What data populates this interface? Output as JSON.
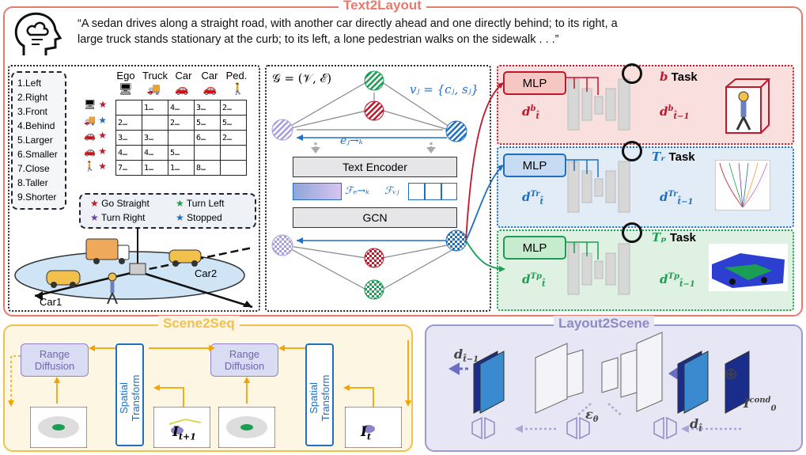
{
  "text2layout": {
    "title": "Text2Layout",
    "quote_line1": "“A sedan drives along a straight road, with another car directly ahead and one directly behind; to its right, a",
    "quote_line2": "large truck stands stationary at the curb; to its left, a lone pedestrian walks on the sidewalk . . .”",
    "relations": [
      "1.Left",
      "2.Right",
      "3.Front",
      "4.Behind",
      "5.Larger",
      "6.Smaller",
      "7.Close",
      "8.Taller",
      "9.Shorter"
    ],
    "table_headers": [
      "Ego",
      "Truck",
      "Car",
      "Car",
      "Ped."
    ],
    "table_rows": [
      [
        "",
        "1…",
        "4…",
        "3…",
        "2…"
      ],
      [
        "2…",
        "",
        "2…",
        "5…",
        "5…"
      ],
      [
        "3…",
        "3…",
        "",
        "6…",
        "2…"
      ],
      [
        "4…",
        "4…",
        "5…",
        "",
        ""
      ],
      [
        "7…",
        "1…",
        "1…",
        "8…",
        ""
      ]
    ],
    "legend": [
      {
        "label": "Go Straight",
        "color": "#c0172b"
      },
      {
        "label": "Turn Left",
        "color": "#1b9e53"
      },
      {
        "label": "Turn Right",
        "color": "#6b3fa0"
      },
      {
        "label": "Stopped",
        "color": "#1f6fc1"
      }
    ],
    "scene_labels": {
      "car1": "Car1",
      "car2": "Car2"
    },
    "graph_eq": "𝒢 = (𝒱, ℰ)",
    "node_eq": "vⱼ = {cⱼ, sⱼ}",
    "edge_label": "eⱼ→ₖ",
    "text_encoder": "Text Encoder",
    "feat_e": "ℱₑ→ₖ",
    "feat_v": "ℱᵥⱼ",
    "gcn": "GCN",
    "mlp": "MLP",
    "tasks": [
      {
        "sym": "b",
        "word": "Task",
        "color": "#c0172b",
        "d_cur": "d",
        "d_cur_sup": "b",
        "d_cur_sub": "t̂",
        "d_prev": "d",
        "d_prev_sup": "b",
        "d_prev_sub": "t̂−1"
      },
      {
        "sym": "Tᵣ",
        "word": "Task",
        "color": "#1f6fc1",
        "d_cur": "d",
        "d_cur_sup": "Tr",
        "d_cur_sub": "t̂",
        "d_prev": "d",
        "d_prev_sup": "Tr",
        "d_prev_sub": "t̂−1"
      },
      {
        "sym": "Tₚ",
        "word": "Task",
        "color": "#1b9e53",
        "d_cur": "d",
        "d_cur_sup": "Tp",
        "d_cur_sub": "t̂",
        "d_prev": "d",
        "d_prev_sup": "Tp",
        "d_prev_sub": "t̂−1"
      }
    ]
  },
  "scene2seq": {
    "title": "Scene2Seq",
    "range_diffusion": "Range Diffusion",
    "spatial_transform": "Spatial Transform",
    "i_next": "I",
    "i_next_sub": "t+1",
    "i_cur": "I",
    "i_cur_sub": "t"
  },
  "layout2scene": {
    "title": "Layout2Scene",
    "d_prev": "d",
    "d_prev_sub": "t̂−1",
    "d_cur": "d",
    "d_cur_sub": "t̂",
    "eps": "ε",
    "eps_sub": "θ",
    "cond": "I",
    "cond_sub": "0",
    "cond_sup": "cond",
    "oplus": "⊕"
  },
  "colors": {
    "text2layout_border": "#e8796d",
    "scene2seq_border": "#f2c14b",
    "layout2scene_border": "#9b9ad0",
    "red": "#c0172b",
    "blue": "#1f6fc1",
    "green": "#1b9e53",
    "purple": "#8c82c8"
  }
}
